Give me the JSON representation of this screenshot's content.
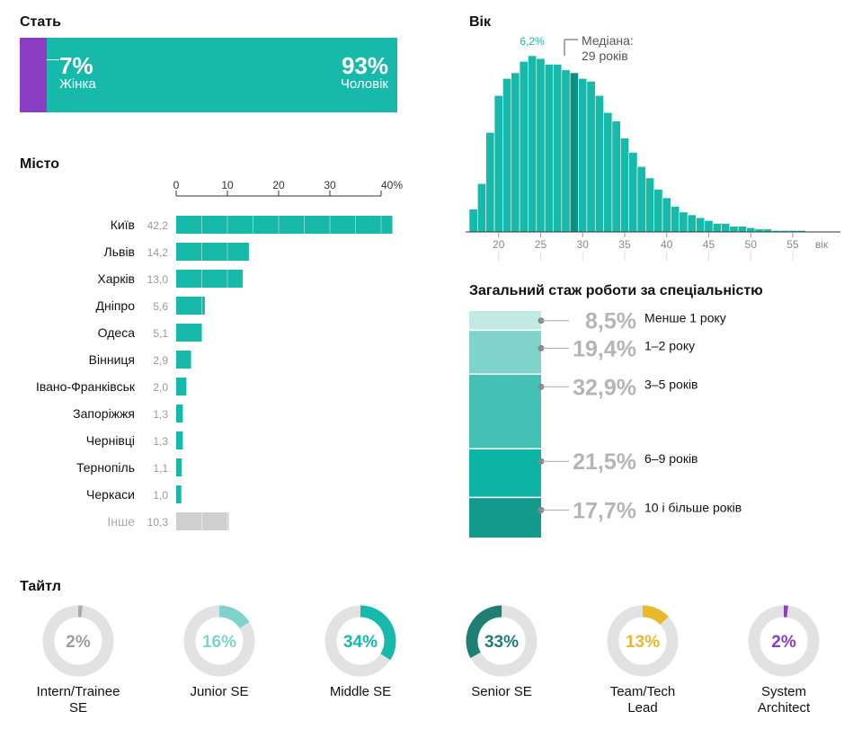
{
  "gender": {
    "title": "Стать",
    "female": {
      "pct": "7%",
      "label": "Жінка",
      "value": 7,
      "color": "#8b3ec2"
    },
    "male": {
      "pct": "93%",
      "label": "Чоловік",
      "value": 93,
      "color": "#16b9aa"
    }
  },
  "age": {
    "title": "Вік",
    "peak_label": "6,2%",
    "median_label_line1": "Медіана:",
    "median_label_line2": "29 років"
  },
  "city": {
    "title": "Місто"
  },
  "experience": {
    "title": "Загальний стаж роботи за спеціальністю"
  },
  "titles": {
    "title": "Тайтл"
  },
  "colors": {
    "teal": "#16b9aa",
    "teal_dark": "#0f8f84",
    "purple": "#8b3ec2",
    "gray": "#cfcfcf",
    "yellow": "#e8b92b"
  },
  "chart_data": [
    {
      "id": "city",
      "type": "bar",
      "orientation": "horizontal",
      "title": "Місто",
      "categories": [
        "Київ",
        "Львів",
        "Харків",
        "Дніпро",
        "Одеса",
        "Вінниця",
        "Івано-Франківськ",
        "Запоріжжя",
        "Чернівці",
        "Тернопіль",
        "Черкаси",
        "Інше"
      ],
      "values": [
        42.2,
        14.2,
        13.0,
        5.6,
        5.1,
        2.9,
        2.0,
        1.3,
        1.3,
        1.1,
        1.0,
        10.3
      ],
      "value_labels": [
        "42,2",
        "14,2",
        "13,0",
        "5,6",
        "5,1",
        "2,9",
        "2,0",
        "1,3",
        "1,3",
        "1,1",
        "1,0",
        "10,3"
      ],
      "xticks": [
        "0",
        "10",
        "20",
        "30",
        "40%"
      ],
      "xlim": [
        0,
        42
      ]
    },
    {
      "id": "age",
      "type": "bar",
      "title": "Вік",
      "x": [
        17,
        18,
        19,
        20,
        21,
        22,
        23,
        24,
        25,
        26,
        27,
        28,
        29,
        30,
        31,
        32,
        33,
        34,
        35,
        36,
        37,
        38,
        39,
        40,
        41,
        42,
        43,
        44,
        45,
        46,
        47,
        48,
        49,
        50,
        51,
        52,
        53,
        54,
        55,
        56
      ],
      "values": [
        0.8,
        1.7,
        3.5,
        4.8,
        5.4,
        5.6,
        6.0,
        6.2,
        6.1,
        5.9,
        5.9,
        5.7,
        5.6,
        5.4,
        5.3,
        4.8,
        4.2,
        3.9,
        3.3,
        2.8,
        2.3,
        1.9,
        1.5,
        1.2,
        0.9,
        0.7,
        0.6,
        0.5,
        0.4,
        0.3,
        0.3,
        0.2,
        0.2,
        0.15,
        0.1,
        0.1,
        0.05,
        0.05,
        0.05,
        0.05
      ],
      "median": 29,
      "xticks": [
        "20",
        "25",
        "30",
        "35",
        "40",
        "45",
        "50",
        "55",
        "вік"
      ],
      "xlim": [
        17,
        57
      ]
    },
    {
      "id": "experience",
      "type": "bar",
      "stacked": true,
      "title": "Загальний стаж роботи за спеціальністю",
      "categories": [
        "Менше 1 року",
        "1–2 року",
        "3–5 років",
        "6–9 років",
        "10 і більше років"
      ],
      "values": [
        8.5,
        19.4,
        32.9,
        21.5,
        17.7
      ],
      "value_labels": [
        "8,5%",
        "19,4%",
        "32,9%",
        "21,5%",
        "17,7%"
      ],
      "colors": [
        "#c3e9e4",
        "#7fd3ca",
        "#45c0b4",
        "#0db4a6",
        "#149a8d"
      ]
    },
    {
      "id": "titles",
      "type": "pie",
      "title": "Тайтл",
      "categories": [
        "Intern/Trainee SE",
        "Junior SE",
        "Middle SE",
        "Senior SE",
        "Team/Tech Lead",
        "System Architect"
      ],
      "label_lines": [
        [
          "Intern/Trainee",
          "SE"
        ],
        [
          "Junior SE"
        ],
        [
          "Middle SE"
        ],
        [
          "Senior SE"
        ],
        [
          "Team/Tech",
          "Lead"
        ],
        [
          "System",
          "Architect"
        ]
      ],
      "values": [
        2,
        16,
        34,
        33,
        13,
        2
      ],
      "value_labels": [
        "2%",
        "16%",
        "34%",
        "33%",
        "13%",
        "2%"
      ],
      "colors": [
        "#a9a9a9",
        "#7fd3ca",
        "#16b9aa",
        "#1f7f73",
        "#e8b92b",
        "#8b3ec2"
      ],
      "label_colors": [
        "#9e9e9e",
        "#7fd3ca",
        "#16b9aa",
        "#1f7f73",
        "#e8b92b",
        "#8b3ec2"
      ]
    }
  ]
}
